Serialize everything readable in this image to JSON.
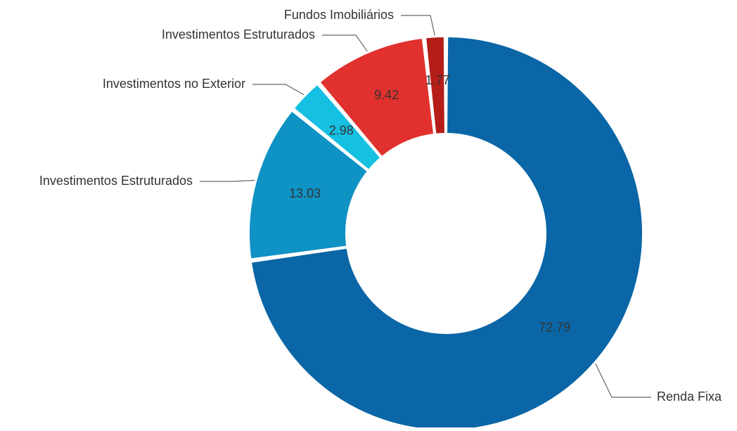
{
  "chart_data": {
    "type": "pie",
    "donut": true,
    "slices": [
      {
        "label": "Renda Fixa",
        "value": 72.79,
        "color": "#0A66A6"
      },
      {
        "label": "Investimentos Estruturados",
        "value": 13.03,
        "color": "#0F92C4"
      },
      {
        "label": "Investimentos no Exterior",
        "value": 2.98,
        "color": "#15C0E2"
      },
      {
        "label": "Investimentos Estruturados",
        "value": 9.42,
        "color": "#E1312E"
      },
      {
        "label": "Fundos Imobiliários",
        "value": 1.77,
        "color": "#B41D18"
      }
    ],
    "value_labels": [
      "72.79",
      "13.03",
      "2.98",
      "9.42",
      "1.77"
    ],
    "legend": "none"
  }
}
